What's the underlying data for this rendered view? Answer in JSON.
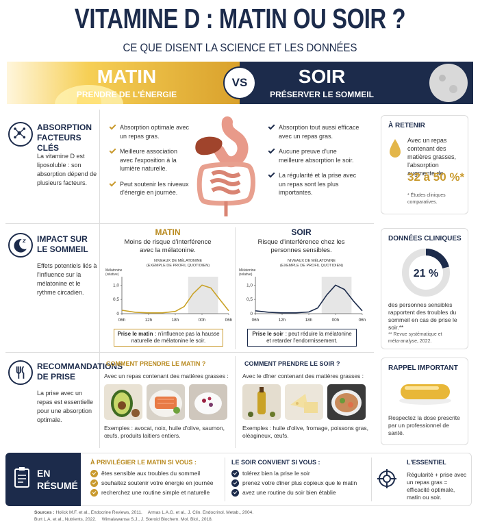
{
  "header": {
    "title": "VITAMINE D : MATIN OU SOIR ?",
    "subtitle": "CE QUE DISENT LA SCIENCE ET LES DONNÉES"
  },
  "banner": {
    "morning": {
      "title": "MATIN",
      "subtitle": "PRENDRE DE L'ÉNERGIE"
    },
    "versus": "VS",
    "evening": {
      "title": "SOIR",
      "subtitle": "PRÉSERVER LE SOMMEIL"
    }
  },
  "absorption": {
    "title": "ABSORPTION FACTEURS CLÉS",
    "text": "La vitamine D est liposoluble : son absorption dépend de plusieurs facteurs.",
    "morning": [
      "Absorption optimale avec un repas gras.",
      "Meilleure association avec l'exposition à la lumière naturelle.",
      "Peut soutenir les niveaux d'énergie en journée."
    ],
    "evening": [
      "Absorption tout aussi efficace avec un repas gras.",
      "Aucune preuve d'une meilleure absorption le soir.",
      "La régularité et la prise avec un repas sont les plus importantes."
    ],
    "aside": {
      "title": "À RETENIR",
      "text": "Avec un repas contenant des matières grasses, l'absorption augmente de",
      "highlight": "32 à 50 %*",
      "note": "* Études cliniques comparatives."
    }
  },
  "sleep": {
    "title": "IMPACT SUR LE SOMMEIL",
    "text": "Effets potentiels liés à l'influence sur la mélatonine et le rythme circadien.",
    "morning": {
      "title": "MATIN",
      "text": "Moins de risque d'interférence avec la mélatonine.",
      "chart": {
        "type": "line",
        "title": "NIVEAUX DE MÉLATONINE",
        "subtitle": "(EXEMPLE DE PROFIL QUOTIDIEN)",
        "ylabel": [
          "Mélatonine",
          "(relative)"
        ],
        "color": "#c9a227",
        "x": [
          6,
          9,
          12,
          15,
          18,
          20,
          22,
          24,
          26,
          28,
          30
        ],
        "values": [
          0.12,
          0.05,
          0.03,
          0.03,
          0.08,
          0.25,
          0.7,
          1.0,
          0.9,
          0.5,
          0.1
        ],
        "xlim": [
          6,
          30
        ],
        "ylim": [
          0,
          1.2
        ],
        "xticks": [
          {
            "value": 6,
            "label": "06h"
          },
          {
            "value": 12,
            "label": "12h"
          },
          {
            "value": 18,
            "label": "18h"
          },
          {
            "value": 24,
            "label": "00h"
          },
          {
            "value": 30,
            "label": "06h"
          }
        ],
        "yticks": [
          0,
          {
            "value": 0.5,
            "label": "0,5"
          },
          {
            "value": 1,
            "label": "1,0"
          }
        ]
      },
      "caption": {
        "bold": "Prise le matin",
        "text": ": n'influence pas la hausse naturelle de mélatonine le soir."
      }
    },
    "evening": {
      "title": "SOIR",
      "text": "Risque d'interférence chez les personnes sensibles.",
      "chart": {
        "type": "line",
        "title": "NIVEAUX DE MÉLATONINE",
        "subtitle": "(EXEMPLE DE PROFIL QUOTIDIEN)",
        "ylabel": [
          "Mélatonine",
          "(relative)"
        ],
        "color": "#1c2b4b",
        "x": [
          6,
          9,
          12,
          15,
          18,
          20,
          22,
          24,
          26,
          28,
          30
        ],
        "values": [
          0.1,
          0.05,
          0.03,
          0.03,
          0.06,
          0.2,
          0.65,
          1.0,
          0.85,
          0.45,
          0.1
        ],
        "xlim": [
          6,
          30
        ],
        "ylim": [
          0,
          1.2
        ],
        "xticks": [
          {
            "value": 6,
            "label": "06h"
          },
          {
            "value": 12,
            "label": "12h"
          },
          {
            "value": 18,
            "label": "18h"
          },
          {
            "value": 24,
            "label": "00h"
          },
          {
            "value": 30,
            "label": "06h"
          }
        ],
        "yticks": [
          0,
          {
            "value": 0.5,
            "label": "0,5"
          },
          {
            "value": 1,
            "label": "1,0"
          }
        ]
      },
      "caption": {
        "bold": "Prise le soir",
        "text": ": peut réduire la mélatonine et retarder l'endormissement."
      }
    },
    "aside": {
      "title": "DONNÉES CLINIQUES",
      "value": 21,
      "value_label": "21 %",
      "text": "des personnes sensibles rapportent des troubles du sommeil en cas de prise le soir.**",
      "note": "** Revue systématique et méta-analyse, 2022."
    }
  },
  "recommendations": {
    "title": "RECOMMANDATIONS DE PRISE",
    "text": "La prise avec un repas est essentielle pour une absorption optimale.",
    "morning": {
      "title": "COMMENT PRENDRE LE MATIN ?",
      "text": "Avec un repas contenant des matières grasses :",
      "examples": "Exemples : avocat, noix, huile d'olive, saumon, œufs, produits laitiers entiers."
    },
    "evening": {
      "title": "COMMENT PRENDRE LE SOIR ?",
      "text": "Avec le dîner contenant des matières grasses :",
      "examples": "Exemples : huile d'olive, fromage, poissons gras, oléagineux, œufs."
    },
    "aside": {
      "title": "RAPPEL IMPORTANT",
      "text": "Respectez la dose prescrite par un professionnel de santé."
    }
  },
  "summary": {
    "title": "EN RÉSUMÉ",
    "morning": {
      "title": "À PRIVILÉGIER LE MATIN SI VOUS :",
      "items": [
        "êtes sensible aux troubles du sommeil",
        "souhaitez soutenir votre énergie en journée",
        "recherchez une routine simple et naturelle"
      ]
    },
    "evening": {
      "title": "LE SOIR CONVIENT SI VOUS :",
      "items": [
        "tolérez bien la prise le soir",
        "prenez votre dîner plus copieux que le matin",
        "avez une routine du soir bien établie"
      ]
    },
    "essential": {
      "title": "L'ESSENTIEL",
      "text": "Régularité + prise avec un repas gras = efficacité optimale, matin ou soir."
    }
  },
  "sources": {
    "label": "Sources :",
    "items": [
      "Holick M.F. et al., Endocrine Reviews, 2011.",
      "Armas L.A.G. et al., J. Clin. Endocrinol. Metab., 2004.",
      "Burt L.A. et al., Nutrients, 2022.",
      "Wimalawansa S.J., J. Steroid Biochem. Mol. Biol., 2018."
    ]
  }
}
